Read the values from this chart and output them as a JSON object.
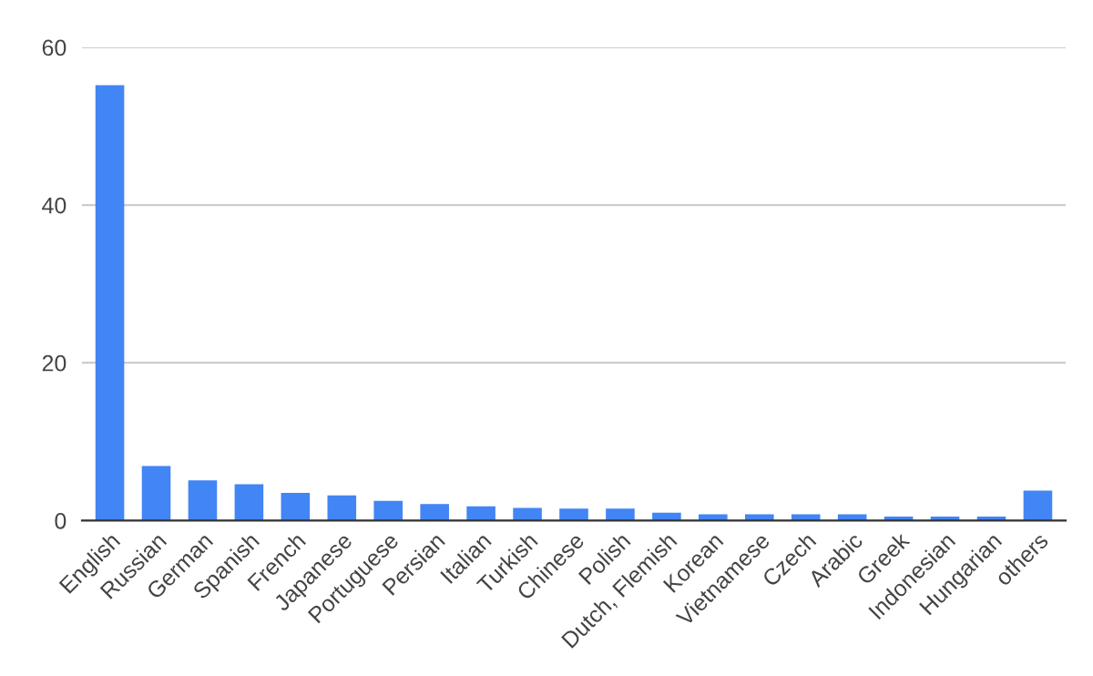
{
  "chart_data": {
    "type": "bar",
    "categories": [
      "English",
      "Russian",
      "German",
      "Spanish",
      "French",
      "Japanese",
      "Portuguese",
      "Persian",
      "Italian",
      "Turkish",
      "Chinese",
      "Polish",
      "Dutch, Flemish",
      "Korean",
      "Vietnamese",
      "Czech",
      "Arabic",
      "Greek",
      "Indonesian",
      "Hungarian",
      "others"
    ],
    "values": [
      55.2,
      6.9,
      5.1,
      4.6,
      3.5,
      3.2,
      2.5,
      2.1,
      1.8,
      1.6,
      1.5,
      1.5,
      1.0,
      0.8,
      0.8,
      0.8,
      0.8,
      0.5,
      0.5,
      0.5,
      3.8
    ],
    "color": "#4285f4",
    "ylim": [
      0,
      60
    ],
    "yticks": [
      0,
      20,
      40,
      60
    ],
    "grid": "y"
  }
}
